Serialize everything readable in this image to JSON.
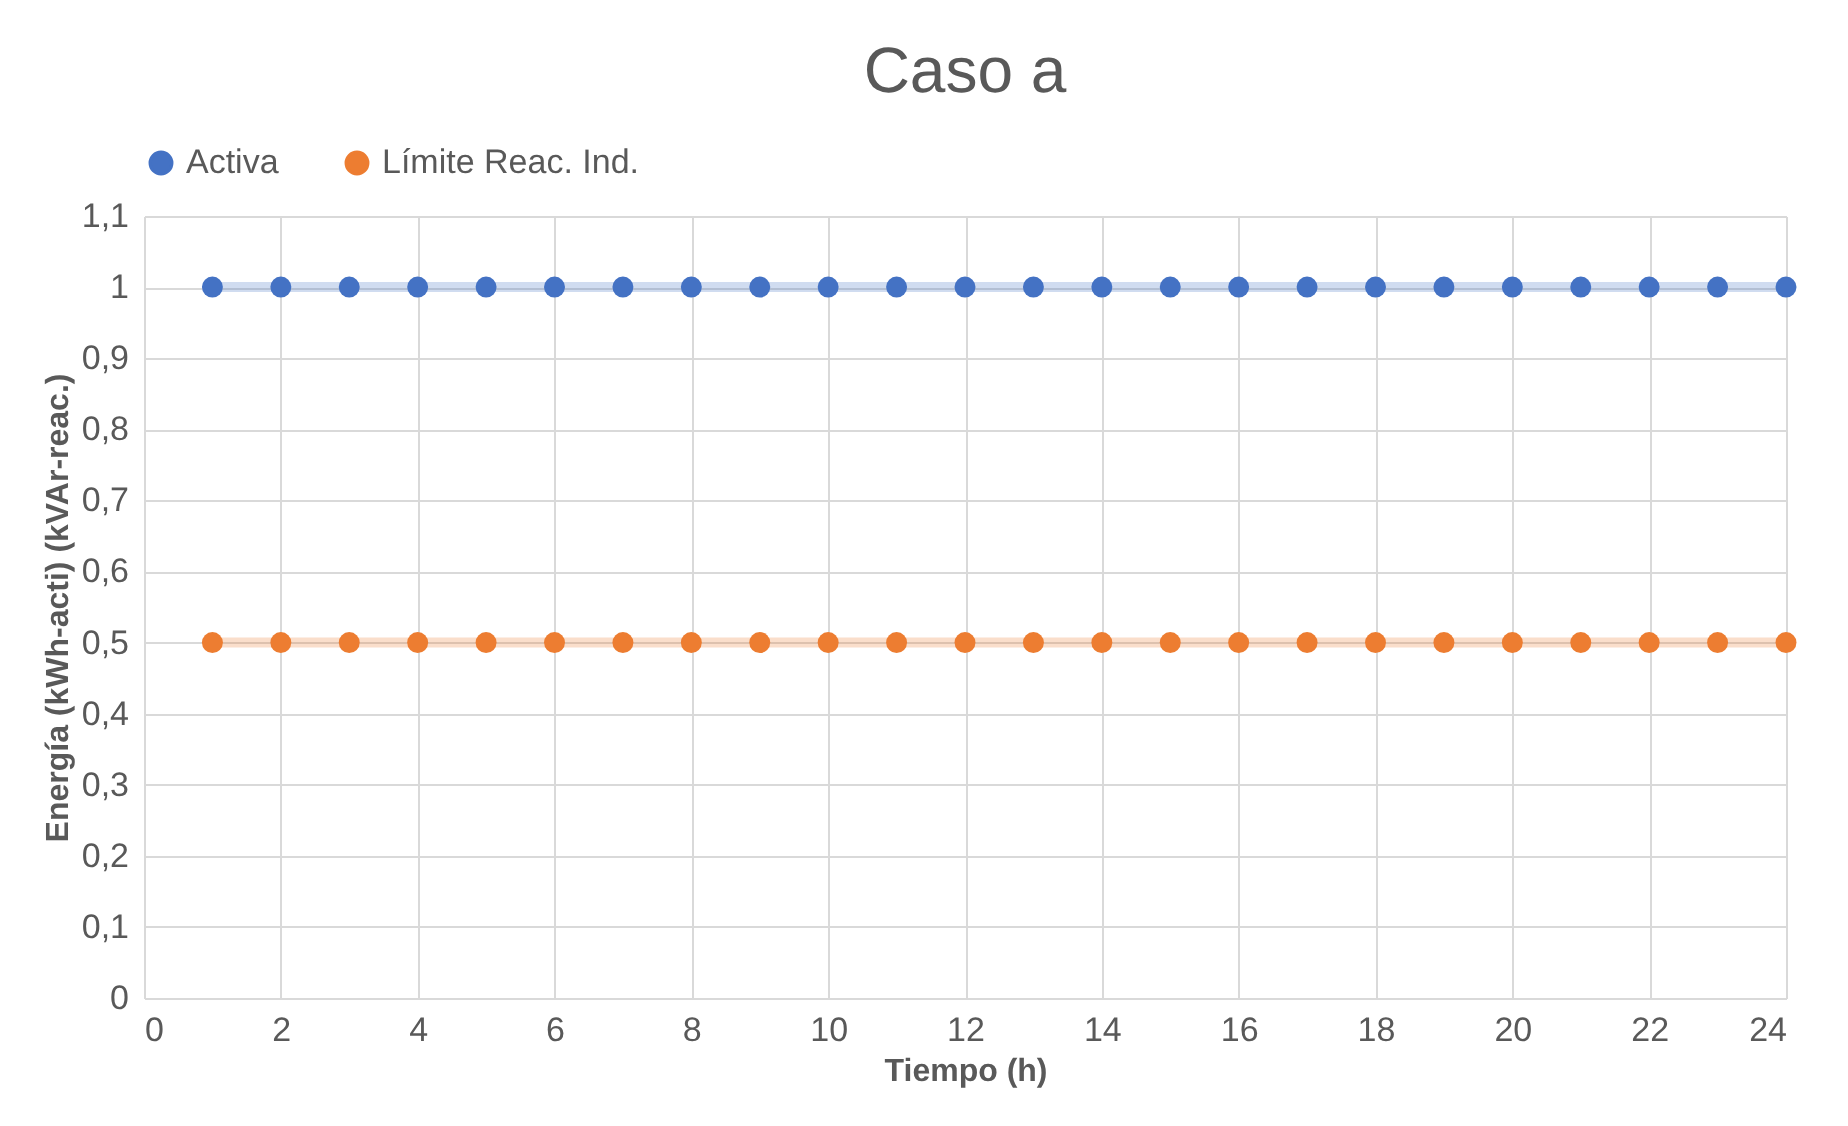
{
  "chart_data": {
    "type": "line",
    "title": "Caso a",
    "xlabel": "Tiempo (h)",
    "ylabel": "Energía (kWh-acti) (kVAr-reac.)",
    "x": [
      1,
      2,
      3,
      4,
      5,
      6,
      7,
      8,
      9,
      10,
      11,
      12,
      13,
      14,
      15,
      16,
      17,
      18,
      19,
      20,
      21,
      22,
      23,
      24
    ],
    "series": [
      {
        "name": "Activa",
        "color": "#4472c4",
        "values": [
          1,
          1,
          1,
          1,
          1,
          1,
          1,
          1,
          1,
          1,
          1,
          1,
          1,
          1,
          1,
          1,
          1,
          1,
          1,
          1,
          1,
          1,
          1,
          1
        ]
      },
      {
        "name": "Límite Reac. Ind.",
        "color": "#ed7d31",
        "values": [
          0.5,
          0.5,
          0.5,
          0.5,
          0.5,
          0.5,
          0.5,
          0.5,
          0.5,
          0.5,
          0.5,
          0.5,
          0.5,
          0.5,
          0.5,
          0.5,
          0.5,
          0.5,
          0.5,
          0.5,
          0.5,
          0.5,
          0.5,
          0.5
        ]
      }
    ],
    "xlim": [
      0,
      24
    ],
    "xticks": [
      0,
      2,
      4,
      6,
      8,
      10,
      12,
      14,
      16,
      18,
      20,
      22,
      24
    ],
    "ylim": [
      0,
      1.1
    ],
    "yticks": [
      0,
      {
        "value": 0.1,
        "label": "0,1"
      },
      {
        "value": 0.2,
        "label": "0,2"
      },
      {
        "value": 0.3,
        "label": "0,3"
      },
      {
        "value": 0.4,
        "label": "0,4"
      },
      {
        "value": 0.5,
        "label": "0,5"
      },
      {
        "value": 0.6,
        "label": "0,6"
      },
      {
        "value": 0.7,
        "label": "0,7"
      },
      {
        "value": 0.8,
        "label": "0,8"
      },
      {
        "value": 0.9,
        "label": "0,9"
      },
      1,
      {
        "value": 1.1,
        "label": "1,1"
      }
    ],
    "grid": true,
    "legend": "top",
    "marker": "circle",
    "line_style": "solid"
  }
}
